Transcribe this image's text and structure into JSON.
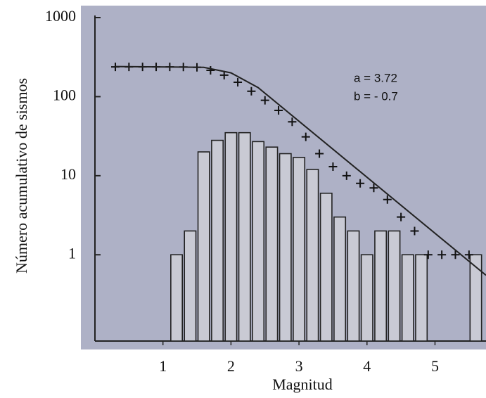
{
  "chart_data": {
    "type": "histogram",
    "x_label": "Magnitud",
    "y_label": "Número acumulativo de sismos",
    "log_y": true,
    "xlim": [
      0,
      5.75
    ],
    "ylim": [
      0.081,
      1000
    ],
    "xticks": [
      1,
      2,
      3,
      4,
      5
    ],
    "yticks": [
      1,
      10,
      100,
      1000
    ],
    "bins": [
      1.1,
      1.3,
      1.5,
      1.7,
      1.9,
      2.1,
      2.3,
      2.5,
      2.7,
      2.9,
      3.1,
      3.3,
      3.5,
      3.7,
      3.9,
      4.1,
      4.3,
      4.5,
      4.7,
      4.9,
      5.1,
      5.3,
      5.5,
      5.7
    ],
    "values": [
      1,
      2,
      20,
      28,
      35,
      35,
      27,
      23,
      19,
      17,
      12,
      6,
      3,
      2,
      1,
      2,
      2,
      1,
      1,
      0,
      0,
      0,
      1
    ],
    "color": "#c9cad4",
    "series": [
      {
        "type": "scatter",
        "color": "#111111",
        "x": [
          0.3,
          0.5,
          0.7,
          0.9,
          1.1,
          1.3,
          1.5,
          1.7,
          1.9,
          2.1,
          2.3,
          2.5,
          2.7,
          2.9,
          3.1,
          3.3,
          3.5,
          3.7,
          3.9,
          4.1,
          4.3,
          4.5,
          4.7,
          4.9,
          5.1,
          5.3,
          5.5
        ],
        "values": [
          238,
          238,
          238,
          238,
          238,
          237,
          235,
          215,
          187,
          152,
          117,
          90,
          67,
          48,
          31,
          19,
          13,
          10,
          8,
          7,
          5,
          3,
          2,
          1,
          1,
          1,
          1
        ]
      },
      {
        "type": "line",
        "color": "#222222",
        "x": [
          0.3,
          1.6,
          2.0,
          2.4,
          5.75
        ],
        "values": [
          240,
          235,
          200,
          130,
          0.55
        ]
      }
    ],
    "annotations": [
      "a = 3.72",
      "b = - 0.7"
    ]
  }
}
